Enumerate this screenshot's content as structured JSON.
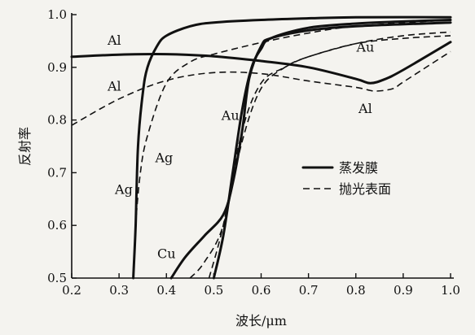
{
  "chart_data": {
    "type": "line",
    "title": "",
    "xlabel": "波长/μm",
    "ylabel": "反射率",
    "xlim": [
      0.2,
      1.0
    ],
    "ylim": [
      0.5,
      1.0
    ],
    "xticks": [
      "0.2",
      "0.3",
      "0.4",
      "0.5",
      "0.6",
      "0.7",
      "0.8",
      "0.9",
      "1.0"
    ],
    "yticks": [
      "0.5",
      "0.6",
      "0.7",
      "0.8",
      "0.9",
      "1.0"
    ],
    "legend": {
      "position": "right",
      "entries": [
        {
          "label": "蒸发膜",
          "style": "solid"
        },
        {
          "label": "抛光表面",
          "style": "dashed"
        }
      ]
    },
    "series": [
      {
        "name": "Al",
        "style": "solid",
        "x": [
          0.2,
          0.3,
          0.4,
          0.5,
          0.6,
          0.7,
          0.8,
          0.83,
          0.86,
          0.9,
          1.0
        ],
        "y": [
          0.92,
          0.924,
          0.925,
          0.921,
          0.912,
          0.9,
          0.878,
          0.87,
          0.877,
          0.895,
          0.948
        ]
      },
      {
        "name": "Al",
        "style": "dashed",
        "x": [
          0.2,
          0.3,
          0.4,
          0.5,
          0.6,
          0.7,
          0.8,
          0.84,
          0.88,
          0.9,
          1.0
        ],
        "y": [
          0.79,
          0.84,
          0.875,
          0.89,
          0.888,
          0.874,
          0.862,
          0.855,
          0.86,
          0.872,
          0.93
        ]
      },
      {
        "name": "Ag",
        "style": "solid",
        "x": [
          0.33,
          0.335,
          0.34,
          0.35,
          0.36,
          0.38,
          0.4,
          0.45,
          0.5,
          0.6,
          0.7,
          0.8,
          1.0
        ],
        "y": [
          0.5,
          0.6,
          0.75,
          0.85,
          0.9,
          0.94,
          0.96,
          0.978,
          0.985,
          0.99,
          0.993,
          0.995,
          0.995
        ]
      },
      {
        "name": "Ag",
        "style": "dashed",
        "x": [
          0.33,
          0.335,
          0.345,
          0.36,
          0.4,
          0.45,
          0.5,
          0.6,
          0.7,
          0.8,
          1.0
        ],
        "y": [
          0.5,
          0.6,
          0.7,
          0.77,
          0.87,
          0.91,
          0.925,
          0.947,
          0.965,
          0.978,
          0.99
        ]
      },
      {
        "name": "Au",
        "style": "solid",
        "x": [
          0.5,
          0.52,
          0.54,
          0.56,
          0.58,
          0.6,
          0.62,
          0.7,
          0.8,
          0.9,
          1.0
        ],
        "y": [
          0.5,
          0.58,
          0.7,
          0.82,
          0.9,
          0.935,
          0.955,
          0.975,
          0.983,
          0.987,
          0.99
        ]
      },
      {
        "name": "Au",
        "style": "dashed",
        "x": [
          0.49,
          0.52,
          0.56,
          0.6,
          0.65,
          0.7,
          0.8,
          0.9,
          1.0
        ],
        "y": [
          0.5,
          0.6,
          0.78,
          0.87,
          0.9,
          0.92,
          0.945,
          0.96,
          0.967
        ]
      },
      {
        "name": "Cu",
        "style": "solid",
        "x": [
          0.41,
          0.44,
          0.48,
          0.52,
          0.54,
          0.56,
          0.575,
          0.6,
          0.62,
          0.7,
          0.8,
          1.0
        ],
        "y": [
          0.5,
          0.54,
          0.58,
          0.62,
          0.68,
          0.78,
          0.88,
          0.94,
          0.955,
          0.97,
          0.978,
          0.985
        ]
      },
      {
        "name": "Cu",
        "style": "dashed",
        "x": [
          0.45,
          0.48,
          0.52,
          0.56,
          0.6,
          0.65,
          0.7,
          0.8,
          0.9,
          1.0
        ],
        "y": [
          0.5,
          0.53,
          0.6,
          0.76,
          0.86,
          0.9,
          0.92,
          0.945,
          0.955,
          0.96
        ]
      }
    ],
    "annotations": [
      {
        "text": "Al",
        "x": 0.29,
        "y": 0.943
      },
      {
        "text": "Al",
        "x": 0.29,
        "y": 0.856
      },
      {
        "text": "Ag",
        "x": 0.395,
        "y": 0.72
      },
      {
        "text": "Ag",
        "x": 0.31,
        "y": 0.66
      },
      {
        "text": "Au",
        "x": 0.535,
        "y": 0.8
      },
      {
        "text": "Au",
        "x": 0.82,
        "y": 0.93
      },
      {
        "text": "Al",
        "x": 0.82,
        "y": 0.813
      },
      {
        "text": "Cu",
        "x": 0.4,
        "y": 0.538
      }
    ]
  }
}
